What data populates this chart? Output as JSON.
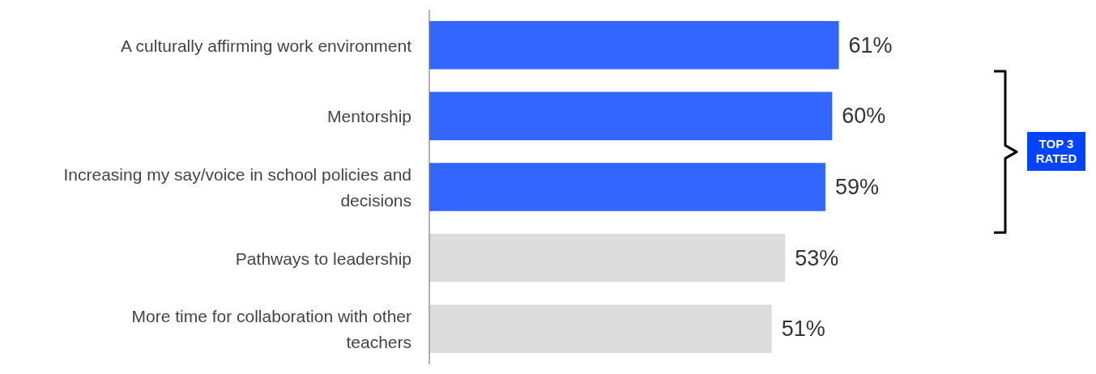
{
  "chart_data": {
    "type": "bar",
    "orientation": "horizontal",
    "categories": [
      "A culturally affirming work environment",
      "Mentorship",
      "Increasing my say/voice in school policies and decisions",
      "Pathways to leadership",
      "More time for collaboration with other teachers"
    ],
    "values": [
      61,
      60,
      59,
      53,
      51
    ],
    "colors": [
      "#3366ff",
      "#3366ff",
      "#3366ff",
      "#dcdcdc",
      "#dcdcdc"
    ],
    "value_labels": [
      "61%",
      "60%",
      "59%",
      "53%",
      "51%"
    ],
    "annotations": [
      "TOP 3 RATED"
    ]
  }
}
